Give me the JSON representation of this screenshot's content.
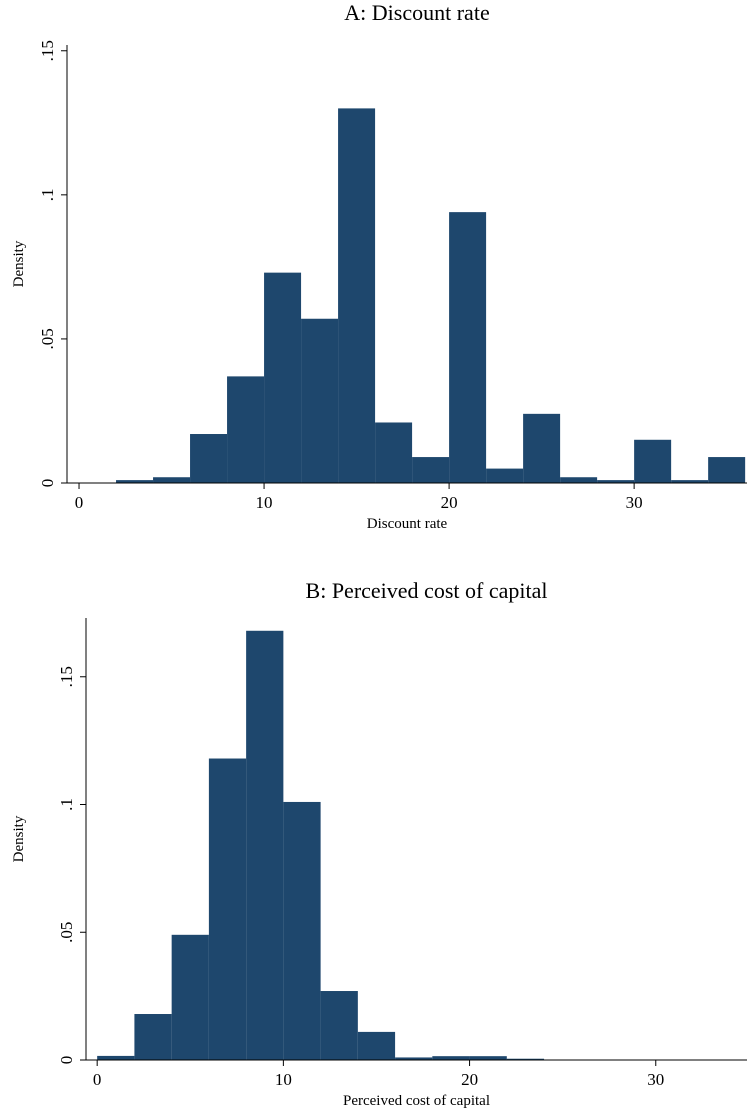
{
  "chart_data": [
    {
      "type": "histogram",
      "title": "A: Discount rate",
      "xlabel": "Discount rate",
      "ylabel": "Density",
      "bins": [
        2,
        4,
        6,
        8,
        10,
        12,
        14,
        16,
        18,
        20,
        22,
        24,
        26,
        28,
        30,
        32,
        34,
        36
      ],
      "values": [
        0.001,
        0.002,
        0.017,
        0.037,
        0.073,
        0.057,
        0.13,
        0.021,
        0.009,
        0.094,
        0.005,
        0.024,
        0.002,
        0.001,
        0.015,
        0.001,
        0.009
      ],
      "color": "#1e476d",
      "xlim": [
        -0.65,
        36.1
      ],
      "xticks": [
        0,
        10,
        20,
        30
      ],
      "ylim": [
        0,
        0.152
      ],
      "yticks": [
        0,
        {
          "value": 0.05,
          "label": ".05"
        },
        {
          "value": 0.1,
          "label": ".1"
        },
        {
          "value": 0.15,
          "label": ".15"
        }
      ]
    },
    {
      "type": "histogram",
      "title": "B: Perceived cost of capital",
      "xlabel": "Perceived cost of capital",
      "ylabel": "Density",
      "bins": [
        0,
        2,
        4,
        6,
        8,
        10,
        12,
        14,
        16,
        18,
        20,
        22,
        24
      ],
      "values": [
        0.0016,
        0.018,
        0.049,
        0.118,
        0.168,
        0.101,
        0.027,
        0.011,
        0.001,
        0.0015,
        0.0015,
        0.0005
      ],
      "color": "#1e476d",
      "xlim": [
        -0.6,
        34.9
      ],
      "xticks": [
        0,
        10,
        20,
        30
      ],
      "ylim": [
        0,
        0.173
      ],
      "yticks": [
        0,
        {
          "value": 0.05,
          "label": ".05"
        },
        {
          "value": 0.1,
          "label": ".1"
        },
        {
          "value": 0.15,
          "label": ".15"
        }
      ]
    }
  ]
}
